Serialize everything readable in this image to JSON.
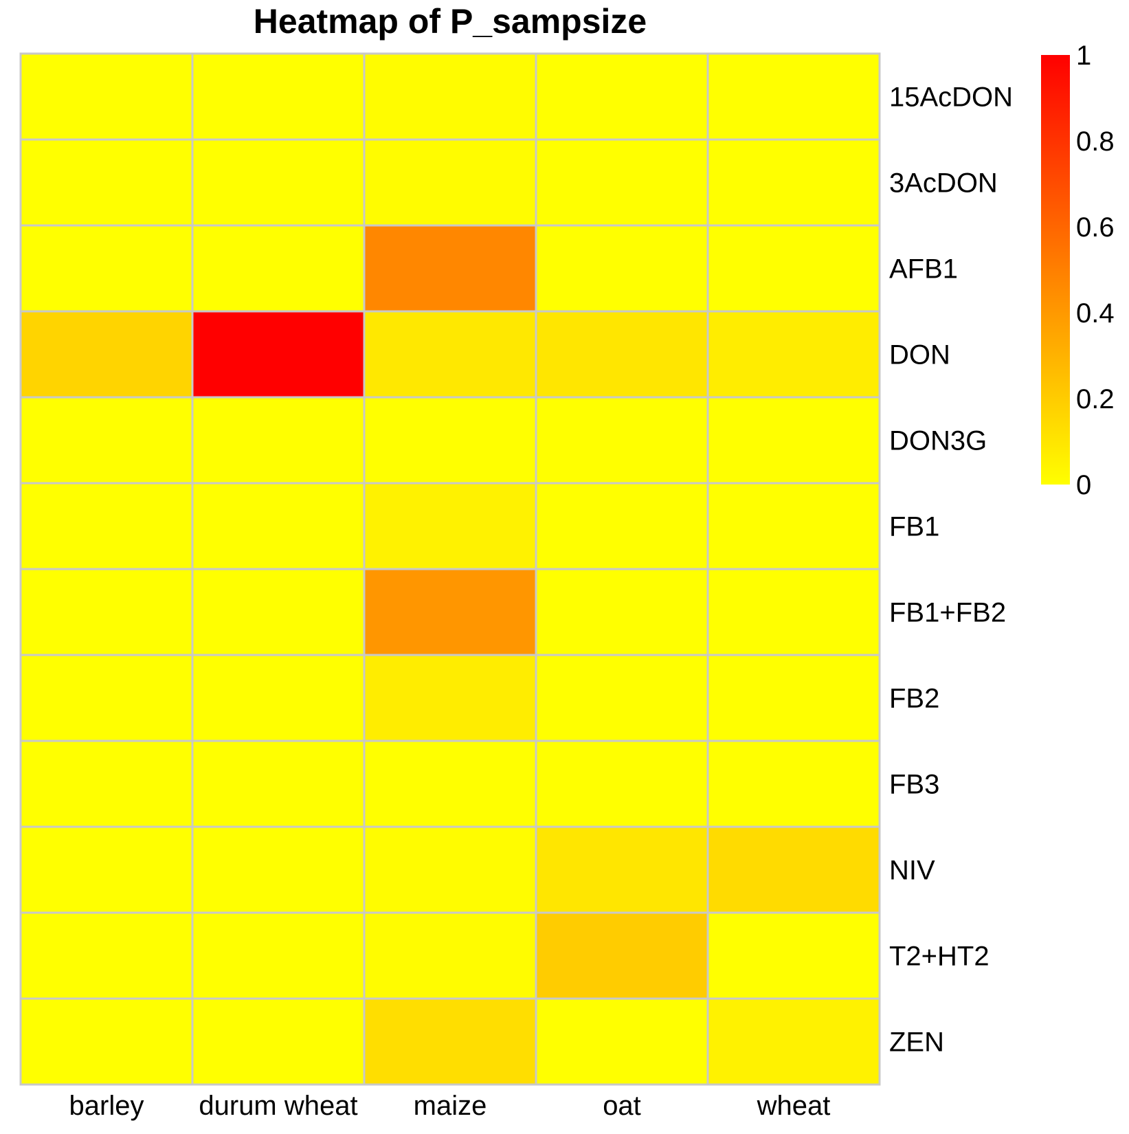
{
  "chart_data": {
    "type": "heatmap",
    "title": "Heatmap  of  P_sampsize",
    "columns": [
      "barley",
      "durum wheat",
      "maize",
      "oat",
      "wheat"
    ],
    "rows": [
      "15AcDON",
      "3AcDON",
      "AFB1",
      "DON",
      "DON3G",
      "FB1",
      "FB1+FB2",
      "FB2",
      "FB3",
      "NIV",
      "T2+HT2",
      "ZEN"
    ],
    "values": [
      [
        0.0,
        0.0,
        0.01,
        0.0,
        0.0
      ],
      [
        0.0,
        0.0,
        0.01,
        0.0,
        0.0
      ],
      [
        0.0,
        0.0,
        0.47,
        0.0,
        0.0
      ],
      [
        0.17,
        1.0,
        0.09,
        0.1,
        0.07
      ],
      [
        0.0,
        0.0,
        0.0,
        0.0,
        0.0
      ],
      [
        0.0,
        0.0,
        0.05,
        0.0,
        0.0
      ],
      [
        0.0,
        0.0,
        0.41,
        0.0,
        0.0
      ],
      [
        0.0,
        0.0,
        0.07,
        0.0,
        0.0
      ],
      [
        0.0,
        0.0,
        0.0,
        0.0,
        0.0
      ],
      [
        0.0,
        0.0,
        0.01,
        0.1,
        0.14
      ],
      [
        0.0,
        0.0,
        0.01,
        0.2,
        0.0
      ],
      [
        0.0,
        0.0,
        0.13,
        0.0,
        0.05
      ]
    ],
    "color_scale": {
      "min": 0,
      "max": 1,
      "low_color": "#FFFF00",
      "high_color": "#FF0000",
      "ticks": [
        "0",
        "0.2",
        "0.4",
        "0.6",
        "0.8",
        "1"
      ]
    },
    "cell_border_color": "#C8C8C8",
    "legend_position": "right"
  }
}
